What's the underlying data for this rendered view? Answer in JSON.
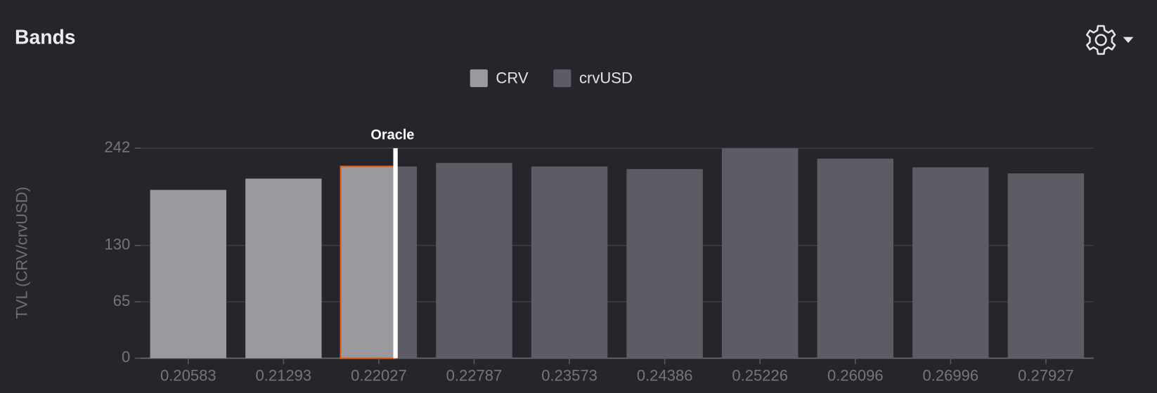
{
  "header": {
    "title": "Bands"
  },
  "chart_data": {
    "type": "bar",
    "ylabel": "TVL (CRV/crvUSD)",
    "categories": [
      "0.20583",
      "0.21293",
      "0.22027",
      "0.22787",
      "0.23573",
      "0.24386",
      "0.25226",
      "0.26096",
      "0.26996",
      "0.27927"
    ],
    "series": [
      {
        "name": "CRV",
        "color": "#9a999f",
        "values": [
          194,
          207,
          221,
          null,
          null,
          null,
          null,
          null,
          null,
          null
        ]
      },
      {
        "name": "crvUSD",
        "color": "#5d5c65",
        "values": [
          null,
          null,
          221,
          225,
          221,
          218,
          242,
          230,
          220,
          213
        ]
      }
    ],
    "ylim": [
      0,
      242
    ],
    "yticks": [
      0,
      65,
      130,
      242
    ],
    "grid": true,
    "oracle": {
      "label": "Oracle",
      "value": 0.2216
    },
    "highlight": 2
  }
}
